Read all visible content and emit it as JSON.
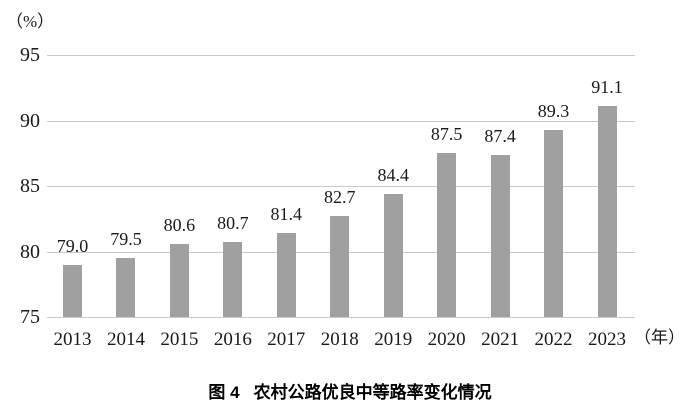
{
  "chart_data": {
    "type": "bar",
    "caption_figure_label": "图 4",
    "caption_title": "农村公路优良中等路率变化情况",
    "y_unit_label": "（%）",
    "x_unit_label": "（年）",
    "categories": [
      "2013",
      "2014",
      "2015",
      "2016",
      "2017",
      "2018",
      "2019",
      "2020",
      "2021",
      "2022",
      "2023"
    ],
    "values": [
      79.0,
      79.5,
      80.6,
      80.7,
      81.4,
      82.7,
      84.4,
      87.5,
      87.4,
      89.3,
      91.1
    ],
    "value_labels": [
      "79.0",
      "79.5",
      "80.6",
      "80.7",
      "81.4",
      "82.7",
      "84.4",
      "87.5",
      "87.4",
      "89.3",
      "91.1"
    ],
    "ylim": [
      75,
      95
    ],
    "yticks": [
      95,
      90,
      85,
      80,
      75
    ],
    "grid": "horizontal",
    "legend_position": "none",
    "bar_color": "#a0a0a0",
    "gridline_color": "#c9c9c9"
  }
}
